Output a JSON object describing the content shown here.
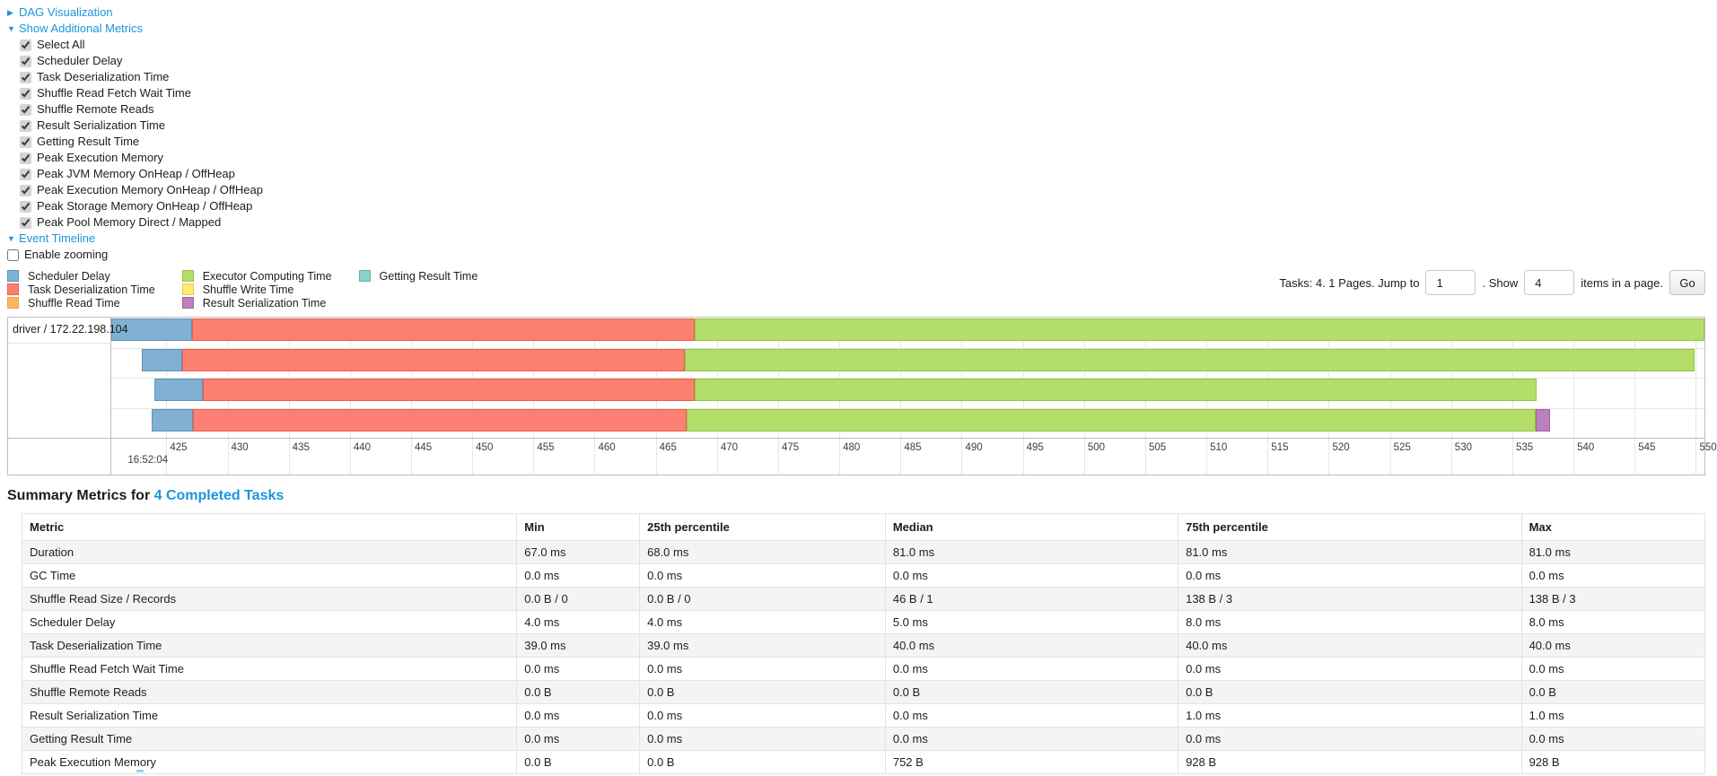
{
  "colors": {
    "link": "#1b95db",
    "chart_border": "#bdbdbd",
    "gridline": "#e6e6e6"
  },
  "links": {
    "dag": "DAG Visualization",
    "metrics": "Show Additional Metrics",
    "timeline": "Event Timeline"
  },
  "controls": {
    "metric_checkboxes": [
      {
        "label": "Select All",
        "checked": true
      },
      {
        "label": "Scheduler Delay",
        "checked": true
      },
      {
        "label": "Task Deserialization Time",
        "checked": true
      },
      {
        "label": "Shuffle Read Fetch Wait Time",
        "checked": true
      },
      {
        "label": "Shuffle Remote Reads",
        "checked": true
      },
      {
        "label": "Result Serialization Time",
        "checked": true
      },
      {
        "label": "Getting Result Time",
        "checked": true
      },
      {
        "label": "Peak Execution Memory",
        "checked": true
      },
      {
        "label": "Peak JVM Memory OnHeap / OffHeap",
        "checked": true
      },
      {
        "label": "Peak Execution Memory OnHeap / OffHeap",
        "checked": true
      },
      {
        "label": "Peak Storage Memory OnHeap / OffHeap",
        "checked": true
      },
      {
        "label": "Peak Pool Memory Direct / Mapped",
        "checked": true
      }
    ],
    "enable_zooming_label": "Enable zooming",
    "enable_zooming_checked": false
  },
  "legend": {
    "columns": [
      [
        {
          "label": "Scheduler Delay",
          "color": "#80B1D3",
          "border": "#5f92bb"
        },
        {
          "label": "Task Deserialization Time",
          "color": "#FB8072",
          "border": "#ea5f4d"
        },
        {
          "label": "Shuffle Read Time",
          "color": "#FDB462",
          "border": "#eda04e"
        }
      ],
      [
        {
          "label": "Executor Computing Time",
          "color": "#B3DE69",
          "border": "#94c545"
        },
        {
          "label": "Shuffle Write Time",
          "color": "#FFED6F",
          "border": "#e3cf4b"
        },
        {
          "label": "Result Serialization Time",
          "color": "#BC80BD",
          "border": "#a25fa5"
        }
      ],
      [
        {
          "label": "Getting Result Time",
          "color": "#8DD3C7",
          "border": "#65b3a4"
        }
      ]
    ]
  },
  "pagination": {
    "tasks_text": "Tasks: 4. 1 Pages. Jump to",
    "jump_value": "1",
    "show_text": ". Show",
    "show_value": "4",
    "items_text": "items in a page.",
    "go_label": "Go"
  },
  "chart_data": {
    "type": "timeline-gantt",
    "group_label": "driver / 172.22.198.104",
    "axis": {
      "min": 420.5,
      "max": 550.7,
      "tick_start": 425,
      "tick_end": 550,
      "tick_step": 5,
      "time_label": "16:52:04",
      "units": "ms within second 16:52:04"
    },
    "colors": {
      "scheduler-delay": "#80B1D3",
      "task-deserialization": "#FB8072",
      "shuffle-read": "#FDB462",
      "executor-computing": "#B3DE69",
      "shuffle-write": "#FFED6F",
      "result-serialization": "#BC80BD",
      "getting-result": "#8DD3C7"
    },
    "borders": {
      "scheduler-delay": "#5f92bb",
      "task-deserialization": "#ea5f4d",
      "shuffle-read": "#eda04e",
      "executor-computing": "#94c545",
      "shuffle-write": "#e3cf4b",
      "result-serialization": "#a25fa5",
      "getting-result": "#65b3a4"
    },
    "tasks": [
      {
        "segments": [
          {
            "name": "scheduler-delay",
            "start": 420.5,
            "end": 427.1
          },
          {
            "name": "task-deserialization",
            "start": 427.1,
            "end": 468.2
          },
          {
            "name": "executor-computing",
            "start": 468.2,
            "end": 550.7
          }
        ]
      },
      {
        "segments": [
          {
            "name": "scheduler-delay",
            "start": 423.0,
            "end": 426.3
          },
          {
            "name": "task-deserialization",
            "start": 426.3,
            "end": 467.4
          },
          {
            "name": "executor-computing",
            "start": 467.4,
            "end": 549.9
          }
        ]
      },
      {
        "segments": [
          {
            "name": "scheduler-delay",
            "start": 424.0,
            "end": 428.0
          },
          {
            "name": "task-deserialization",
            "start": 428.0,
            "end": 468.2
          },
          {
            "name": "executor-computing",
            "start": 468.2,
            "end": 537.0
          }
        ]
      },
      {
        "segments": [
          {
            "name": "scheduler-delay",
            "start": 423.8,
            "end": 427.2
          },
          {
            "name": "task-deserialization",
            "start": 427.2,
            "end": 467.5
          },
          {
            "name": "executor-computing",
            "start": 467.5,
            "end": 536.9
          },
          {
            "name": "result-serialization",
            "start": 536.9,
            "end": 538.1
          }
        ]
      }
    ]
  },
  "summary": {
    "title_prefix": "Summary Metrics for",
    "link_text": "4 Completed Tasks",
    "table": {
      "headers": [
        "Metric",
        "Min",
        "25th percentile",
        "Median",
        "75th percentile",
        "Max"
      ],
      "rows": [
        {
          "metric": "Duration",
          "values": [
            "67.0 ms",
            "68.0 ms",
            "81.0 ms",
            "81.0 ms",
            "81.0 ms"
          ]
        },
        {
          "metric": "GC Time",
          "values": [
            "0.0 ms",
            "0.0 ms",
            "0.0 ms",
            "0.0 ms",
            "0.0 ms"
          ]
        },
        {
          "metric": "Shuffle Read Size / Records",
          "values": [
            "0.0 B / 0",
            "0.0 B / 0",
            "46 B / 1",
            "138 B / 3",
            "138 B / 3"
          ]
        },
        {
          "metric": "Scheduler Delay",
          "values": [
            "4.0 ms",
            "4.0 ms",
            "5.0 ms",
            "8.0 ms",
            "8.0 ms"
          ]
        },
        {
          "metric": "Task Deserialization Time",
          "values": [
            "39.0 ms",
            "39.0 ms",
            "40.0 ms",
            "40.0 ms",
            "40.0 ms"
          ]
        },
        {
          "metric": "Shuffle Read Fetch Wait Time",
          "values": [
            "0.0 ms",
            "0.0 ms",
            "0.0 ms",
            "0.0 ms",
            "0.0 ms"
          ]
        },
        {
          "metric": "Shuffle Remote Reads",
          "values": [
            "0.0 B",
            "0.0 B",
            "0.0 B",
            "0.0 B",
            "0.0 B"
          ]
        },
        {
          "metric": "Result Serialization Time",
          "values": [
            "0.0 ms",
            "0.0 ms",
            "0.0 ms",
            "1.0 ms",
            "1.0 ms"
          ]
        },
        {
          "metric": "Getting Result Time",
          "values": [
            "0.0 ms",
            "0.0 ms",
            "0.0 ms",
            "0.0 ms",
            "0.0 ms"
          ]
        },
        {
          "metric": "Peak Execution Memory",
          "values": [
            "0.0 B",
            "0.0 B",
            "752 B",
            "928 B",
            "928 B"
          ]
        }
      ],
      "column_widths_pct": [
        29.4,
        7.3,
        14.6,
        17.4,
        20.4,
        10.9
      ]
    }
  }
}
